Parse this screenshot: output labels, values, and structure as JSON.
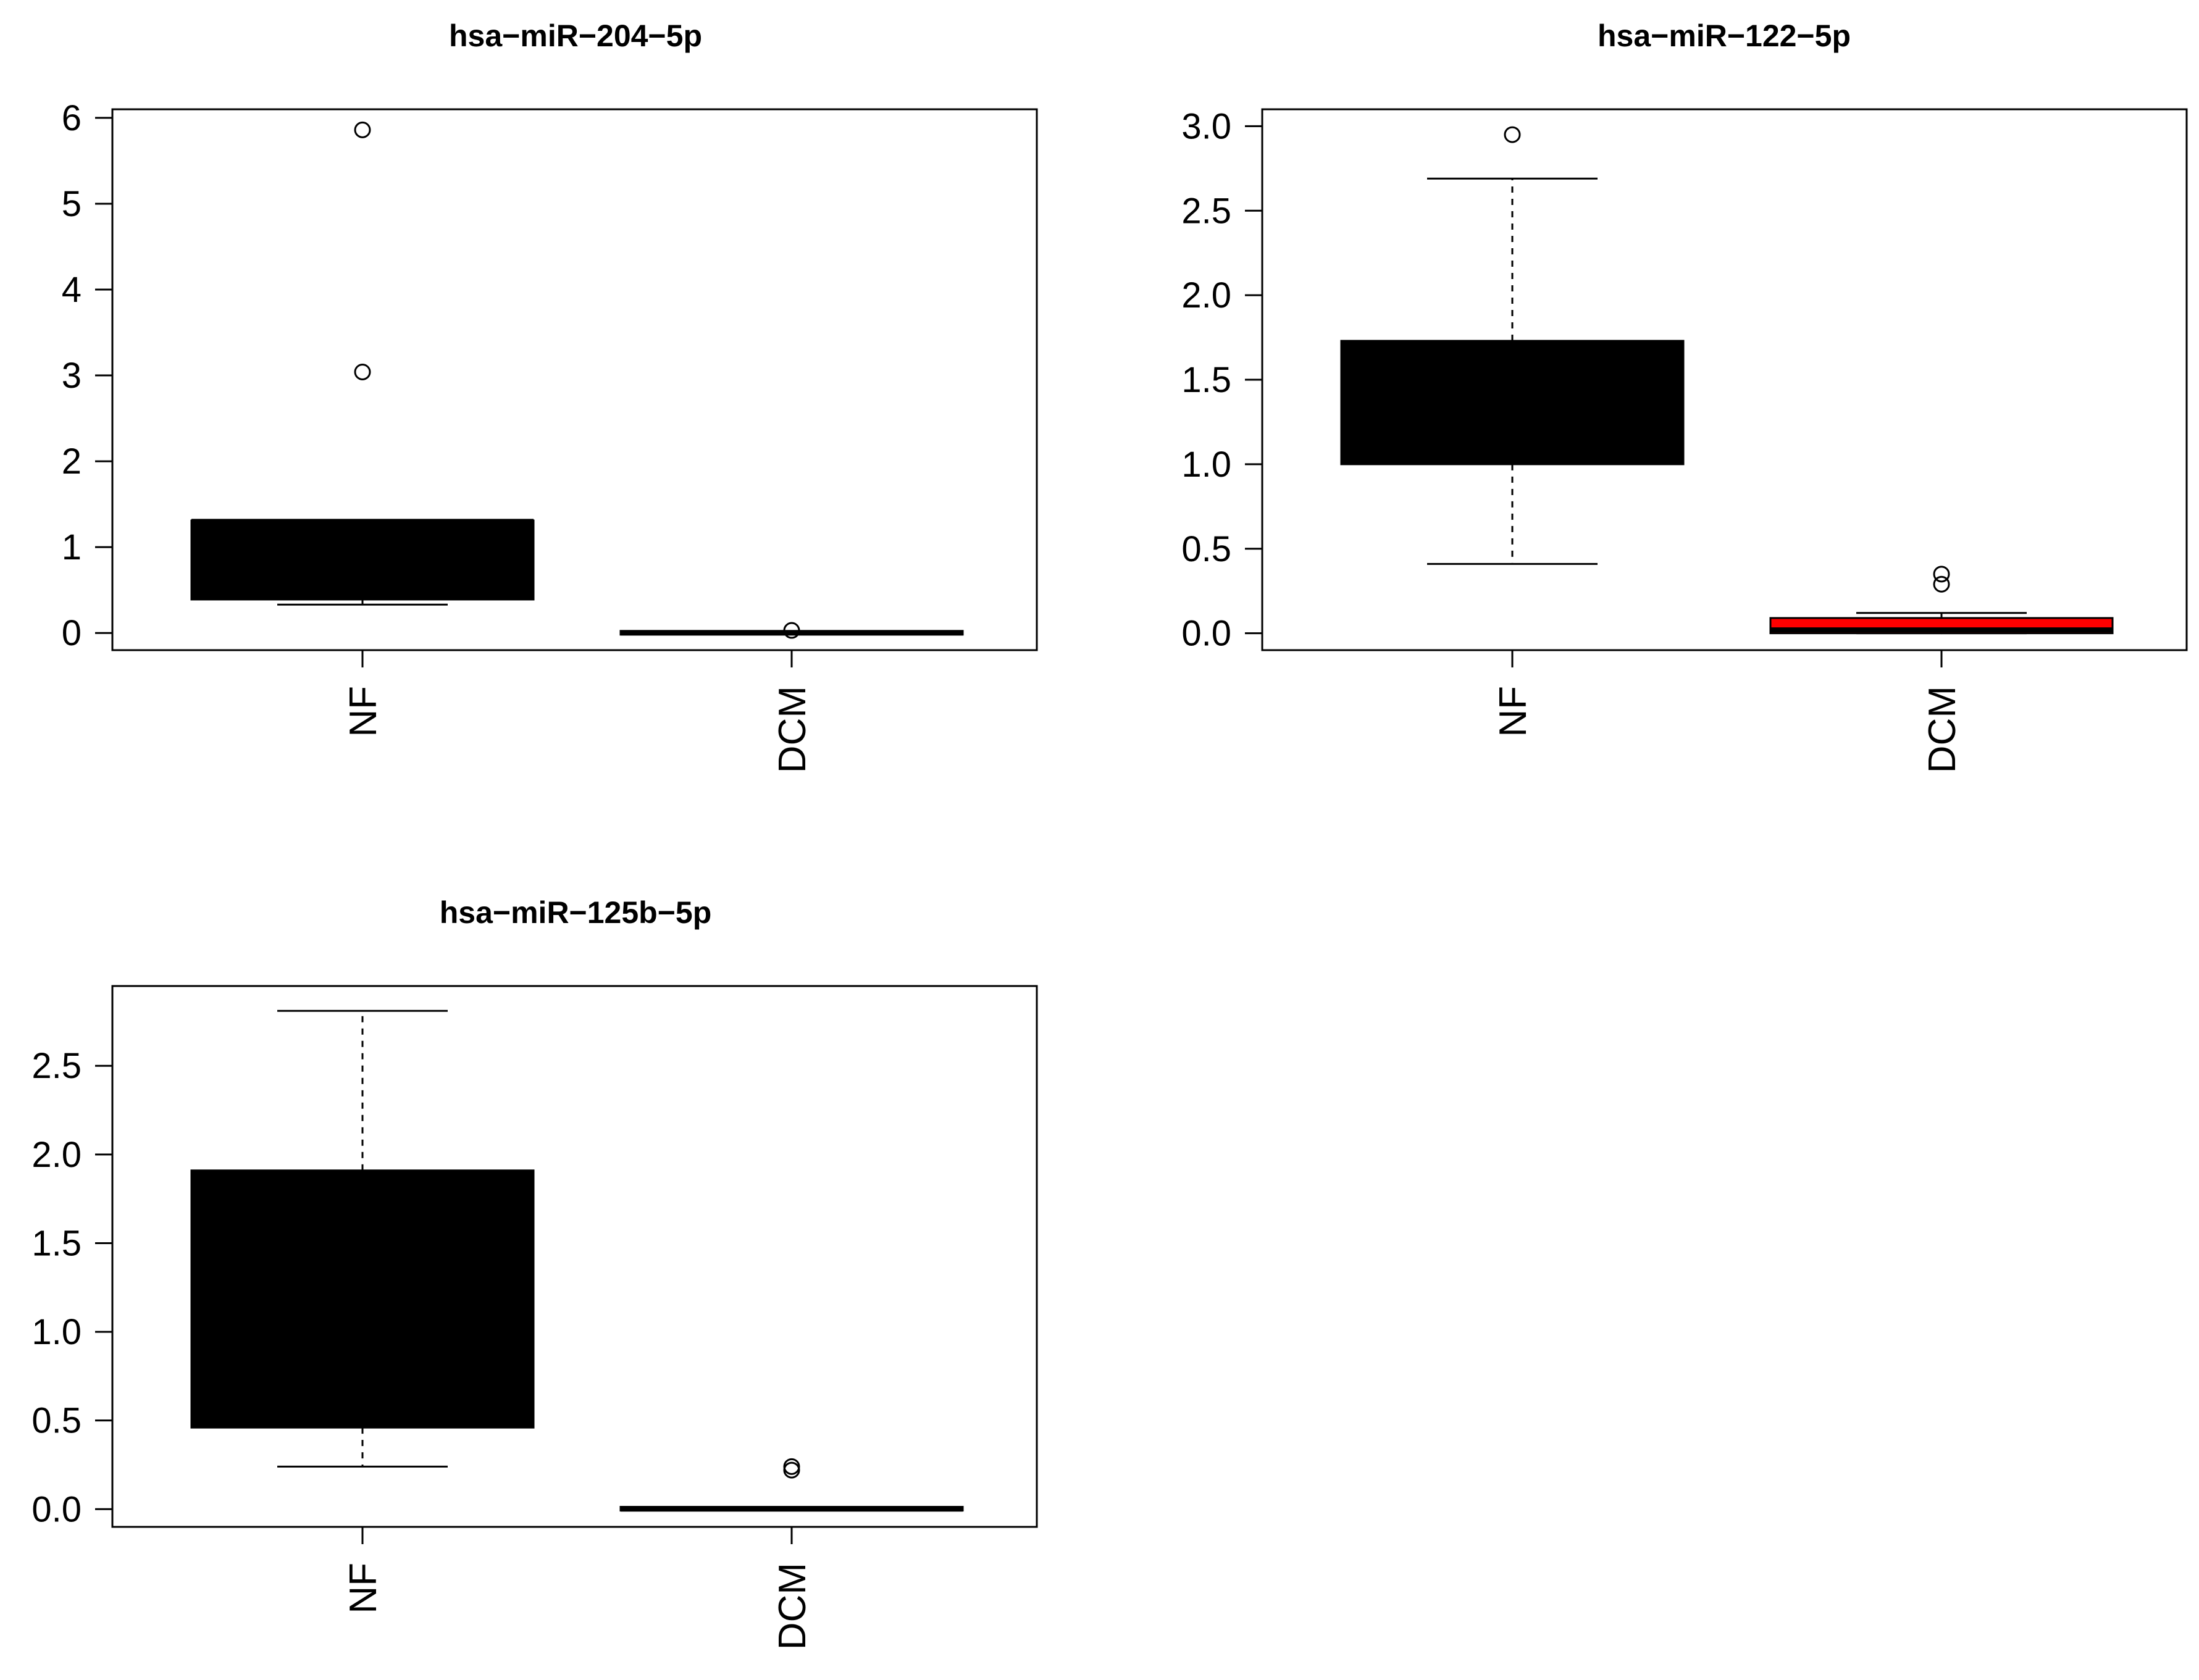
{
  "chart_data": [
    {
      "type": "box",
      "title": "hsa−miR−204−5p",
      "categories": [
        "NF",
        "DCM"
      ],
      "ylim": [
        -0.2,
        6.1
      ],
      "yticks": [
        0,
        1,
        2,
        3,
        4,
        5,
        6
      ],
      "tick_labels": [
        "0",
        "1",
        "2",
        "3",
        "4",
        "5",
        "6"
      ],
      "grid": false,
      "boxes": [
        {
          "name": "NF",
          "min": 0.33,
          "q1": 0.39,
          "median": 1.3,
          "q3": 1.31,
          "max": 1.31,
          "outliers": [
            5.86,
            3.04
          ],
          "color": "#000000"
        },
        {
          "name": "DCM",
          "min": 0.0,
          "q1": 0.0,
          "median": 0.0,
          "q3": 0.005,
          "max": 0.01,
          "outliers": [
            0.03
          ],
          "color": "#000000"
        }
      ]
    },
    {
      "type": "box",
      "title": "hsa−miR−122−5p",
      "categories": [
        "NF",
        "DCM"
      ],
      "ylim": [
        -0.1,
        3.1
      ],
      "yticks": [
        0,
        0.5,
        1,
        1.5,
        2,
        2.5,
        3
      ],
      "tick_labels": [
        "0.0",
        "0.5",
        "1.0",
        "1.5",
        "2.0",
        "2.5",
        "3.0"
      ],
      "grid": false,
      "boxes": [
        {
          "name": "NF",
          "min": 0.41,
          "q1": 1.0,
          "median": 1.7,
          "q3": 1.73,
          "max": 2.69,
          "outliers": [
            2.95
          ],
          "color": "#000000"
        },
        {
          "name": "DCM",
          "min": 0.0,
          "q1": 0.0,
          "median": 0.02,
          "q3": 0.09,
          "max": 0.12,
          "outliers": [
            0.35,
            0.29
          ],
          "color": "#ff0000"
        }
      ]
    },
    {
      "type": "box",
      "title": "hsa−miR−125b−5p",
      "categories": [
        "NF",
        "DCM"
      ],
      "ylim": [
        -0.1,
        2.95
      ],
      "yticks": [
        0,
        0.5,
        1,
        1.5,
        2,
        2.5
      ],
      "tick_labels": [
        "0.0",
        "0.5",
        "1.0",
        "1.5",
        "2.0",
        "2.5"
      ],
      "grid": false,
      "boxes": [
        {
          "name": "NF",
          "min": 0.24,
          "q1": 0.46,
          "median": 1.88,
          "q3": 1.91,
          "max": 2.81,
          "outliers": [],
          "color": "#000000"
        },
        {
          "name": "DCM",
          "min": 0.0,
          "q1": 0.0,
          "median": 0.0,
          "q3": 0.005,
          "max": 0.01,
          "outliers": [
            0.24,
            0.22
          ],
          "color": "#000000"
        }
      ]
    }
  ]
}
